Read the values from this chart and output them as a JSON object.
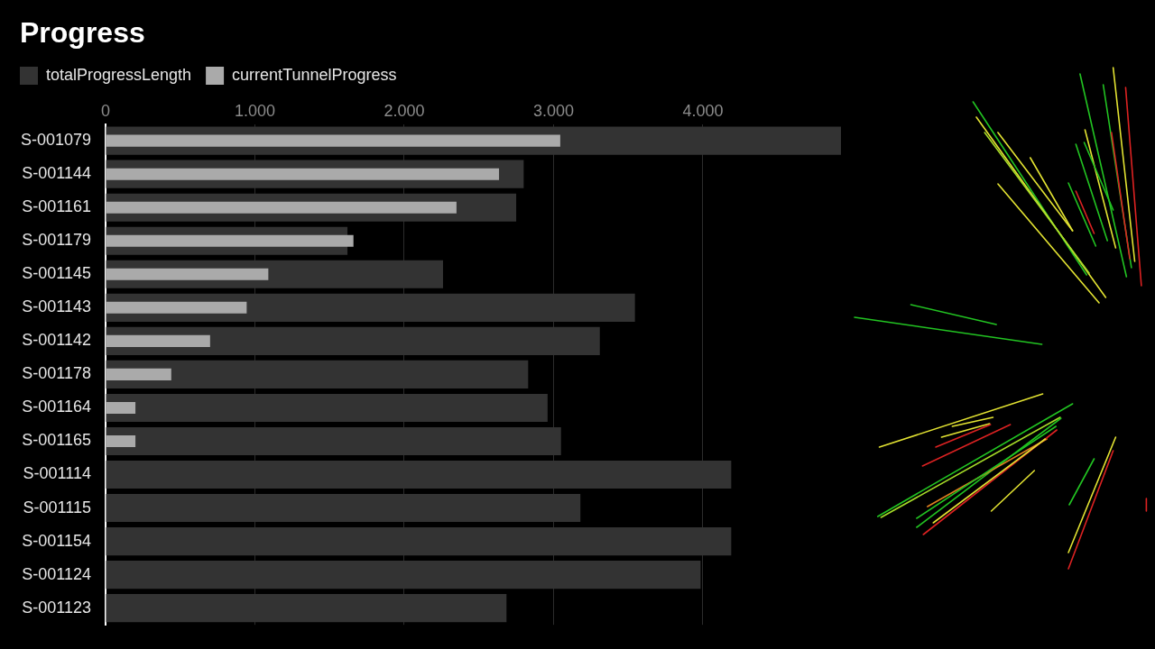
{
  "chart_data": {
    "type": "bar",
    "title": "Progress",
    "orientation": "horizontal",
    "categories": [
      "S-001079",
      "S-001144",
      "S-001161",
      "S-001179",
      "S-001145",
      "S-001143",
      "S-001142",
      "S-001178",
      "S-001164",
      "S-001165",
      "S-001114",
      "S-001115",
      "S-001154",
      "S-001124",
      "S-001123"
    ],
    "series": [
      {
        "name": "totalProgressLength",
        "color": "#333333",
        "values": [
          4925,
          2800,
          2750,
          1620,
          2260,
          3545,
          3310,
          2830,
          2960,
          3050,
          4190,
          3180,
          4190,
          3985,
          2685
        ]
      },
      {
        "name": "currentTunnelProgress",
        "color": "#aaaaaa",
        "values": [
          3045,
          2635,
          2350,
          1660,
          1090,
          945,
          700,
          440,
          200,
          200,
          null,
          null,
          null,
          null,
          null
        ]
      }
    ],
    "xlim": [
      0,
      4925
    ],
    "xticks": [
      0,
      {
        "value": 1000,
        "label": "1.000"
      },
      {
        "value": 2000,
        "label": "2.000"
      },
      {
        "value": 3000,
        "label": "3.000"
      },
      {
        "value": 4000,
        "label": "4.000"
      }
    ],
    "grid": "x",
    "legend": "top left"
  }
}
